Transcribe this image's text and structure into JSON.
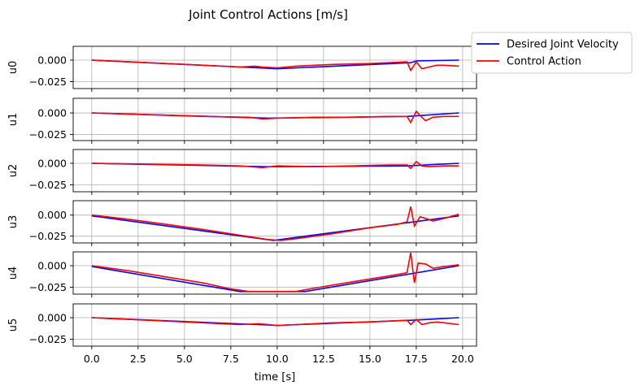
{
  "chart_data": {
    "type": "line",
    "title": "Joint Control Actions [m/s]",
    "xlabel": "time [s]",
    "xlim": [
      -1.0,
      20.75
    ],
    "x_ticks": [
      0.0,
      2.5,
      5.0,
      7.5,
      10.0,
      12.5,
      15.0,
      17.5,
      20.0
    ],
    "x_tick_labels": [
      "0.0",
      "2.5",
      "5.0",
      "7.5",
      "10.0",
      "12.5",
      "15.0",
      "17.5",
      "20.0"
    ],
    "grid": true,
    "legend": {
      "placement": "right-outside-top",
      "entries": [
        {
          "label": "Desired Joint Velocity",
          "color": "#0000ff"
        },
        {
          "label": "Control Action",
          "color": "#ff0000"
        }
      ]
    },
    "series_colors": {
      "desired": "#0000ff",
      "control": "#ff0000"
    },
    "subplots": [
      {
        "ylabel": "u0",
        "ylim": [
          -0.033,
          0.016
        ],
        "y_ticks": [
          0.0,
          -0.025
        ],
        "y_tick_labels": [
          "0.000",
          "−0.025"
        ],
        "desired": [
          [
            0,
            0
          ],
          [
            10,
            -0.01
          ],
          [
            17.2,
            -0.003
          ],
          [
            17.5,
            -0.001
          ],
          [
            19.8,
            0
          ]
        ],
        "control": [
          [
            0,
            0
          ],
          [
            2,
            -0.002
          ],
          [
            4,
            -0.004
          ],
          [
            6,
            -0.006
          ],
          [
            8,
            -0.008
          ],
          [
            8.8,
            -0.007
          ],
          [
            9.2,
            -0.008
          ],
          [
            10,
            -0.009
          ],
          [
            11,
            -0.007
          ],
          [
            13,
            -0.005
          ],
          [
            15,
            -0.004
          ],
          [
            17,
            -0.002
          ],
          [
            17.2,
            -0.012
          ],
          [
            17.5,
            -0.002
          ],
          [
            17.8,
            -0.01
          ],
          [
            18.2,
            -0.008
          ],
          [
            18.6,
            -0.006
          ],
          [
            19,
            -0.006
          ],
          [
            19.8,
            -0.007
          ]
        ]
      },
      {
        "ylabel": "u1",
        "ylim": [
          -0.032,
          0.017
        ],
        "y_ticks": [
          0.0,
          -0.025
        ],
        "y_tick_labels": [
          "0.000",
          "−0.025"
        ],
        "desired": [
          [
            0,
            0
          ],
          [
            9.5,
            -0.006
          ],
          [
            17,
            -0.004
          ],
          [
            19.8,
            0
          ]
        ],
        "control": [
          [
            0,
            0
          ],
          [
            3,
            -0.002
          ],
          [
            6,
            -0.004
          ],
          [
            8.5,
            -0.005
          ],
          [
            9.2,
            -0.007
          ],
          [
            10,
            -0.006
          ],
          [
            12,
            -0.005
          ],
          [
            14,
            -0.005
          ],
          [
            16,
            -0.004
          ],
          [
            17,
            -0.004
          ],
          [
            17.2,
            -0.011
          ],
          [
            17.5,
            0.002
          ],
          [
            17.7,
            -0.003
          ],
          [
            18,
            -0.009
          ],
          [
            18.4,
            -0.005
          ],
          [
            19,
            -0.004
          ],
          [
            19.8,
            -0.004
          ]
        ]
      },
      {
        "ylabel": "u2",
        "ylim": [
          -0.033,
          0.016
        ],
        "y_ticks": [
          0.0,
          -0.025
        ],
        "y_tick_labels": [
          "0.000",
          "−0.025"
        ],
        "desired": [
          [
            0,
            0
          ],
          [
            9.5,
            -0.004
          ],
          [
            17,
            -0.003
          ],
          [
            19.8,
            0
          ]
        ],
        "control": [
          [
            0,
            0
          ],
          [
            3,
            -0.001
          ],
          [
            6,
            -0.002
          ],
          [
            8,
            -0.003
          ],
          [
            9.2,
            -0.005
          ],
          [
            10,
            -0.003
          ],
          [
            12,
            -0.004
          ],
          [
            14,
            -0.003
          ],
          [
            16,
            -0.002
          ],
          [
            17,
            -0.002
          ],
          [
            17.2,
            -0.006
          ],
          [
            17.5,
            0.002
          ],
          [
            17.8,
            -0.003
          ],
          [
            18.2,
            -0.004
          ],
          [
            19,
            -0.003
          ],
          [
            19.8,
            -0.003
          ]
        ]
      },
      {
        "ylabel": "u3",
        "ylim": [
          -0.033,
          0.017
        ],
        "y_ticks": [
          0.0,
          -0.025
        ],
        "y_tick_labels": [
          "0.000",
          "−0.025"
        ],
        "desired": [
          [
            0,
            -0.001
          ],
          [
            9.8,
            -0.03
          ],
          [
            19.8,
            -0.001
          ]
        ],
        "control": [
          [
            0,
            0
          ],
          [
            2,
            -0.005
          ],
          [
            4,
            -0.011
          ],
          [
            6,
            -0.017
          ],
          [
            8,
            -0.024
          ],
          [
            9.5,
            -0.029
          ],
          [
            10.2,
            -0.03
          ],
          [
            11,
            -0.028
          ],
          [
            13,
            -0.022
          ],
          [
            15,
            -0.015
          ],
          [
            16.5,
            -0.011
          ],
          [
            17,
            -0.008
          ],
          [
            17.2,
            0.01
          ],
          [
            17.4,
            -0.013
          ],
          [
            17.7,
            -0.002
          ],
          [
            18,
            -0.004
          ],
          [
            18.4,
            -0.007
          ],
          [
            19,
            -0.004
          ],
          [
            19.8,
            0.001
          ]
        ]
      },
      {
        "ylabel": "u4",
        "ylim": [
          -0.033,
          0.016
        ],
        "y_ticks": [
          0.0,
          -0.025
        ],
        "y_tick_labels": [
          "0.000",
          "−0.025"
        ],
        "desired": [
          [
            0,
            -0.001
          ],
          [
            8,
            -0.03
          ],
          [
            11.5,
            -0.03
          ],
          [
            19.8,
            0
          ]
        ],
        "control": [
          [
            0,
            0
          ],
          [
            2,
            -0.006
          ],
          [
            4,
            -0.013
          ],
          [
            6,
            -0.02
          ],
          [
            7.5,
            -0.027
          ],
          [
            8.5,
            -0.03
          ],
          [
            10,
            -0.03
          ],
          [
            11,
            -0.03
          ],
          [
            12,
            -0.026
          ],
          [
            14,
            -0.019
          ],
          [
            16,
            -0.012
          ],
          [
            16.8,
            -0.009
          ],
          [
            17,
            -0.008
          ],
          [
            17.2,
            0.015
          ],
          [
            17.4,
            -0.02
          ],
          [
            17.6,
            0.003
          ],
          [
            18,
            0.002
          ],
          [
            18.4,
            -0.003
          ],
          [
            19,
            -0.001
          ],
          [
            19.8,
            0.001
          ]
        ]
      },
      {
        "ylabel": "u5",
        "ylim": [
          -0.033,
          0.016
        ],
        "y_ticks": [
          0.0,
          -0.025
        ],
        "y_tick_labels": [
          "0.000",
          "−0.025"
        ],
        "desired": [
          [
            0,
            0
          ],
          [
            10,
            -0.009
          ],
          [
            17.2,
            -0.003
          ],
          [
            19.8,
            0
          ]
        ],
        "control": [
          [
            0,
            0
          ],
          [
            2,
            -0.002
          ],
          [
            4,
            -0.004
          ],
          [
            6,
            -0.006
          ],
          [
            8,
            -0.008
          ],
          [
            9,
            -0.007
          ],
          [
            10,
            -0.009
          ],
          [
            11,
            -0.008
          ],
          [
            13,
            -0.006
          ],
          [
            15,
            -0.005
          ],
          [
            17,
            -0.003
          ],
          [
            17.2,
            -0.008
          ],
          [
            17.5,
            -0.002
          ],
          [
            17.8,
            -0.008
          ],
          [
            18.2,
            -0.006
          ],
          [
            18.6,
            -0.005
          ],
          [
            19,
            -0.006
          ],
          [
            19.8,
            -0.008
          ]
        ]
      }
    ]
  }
}
